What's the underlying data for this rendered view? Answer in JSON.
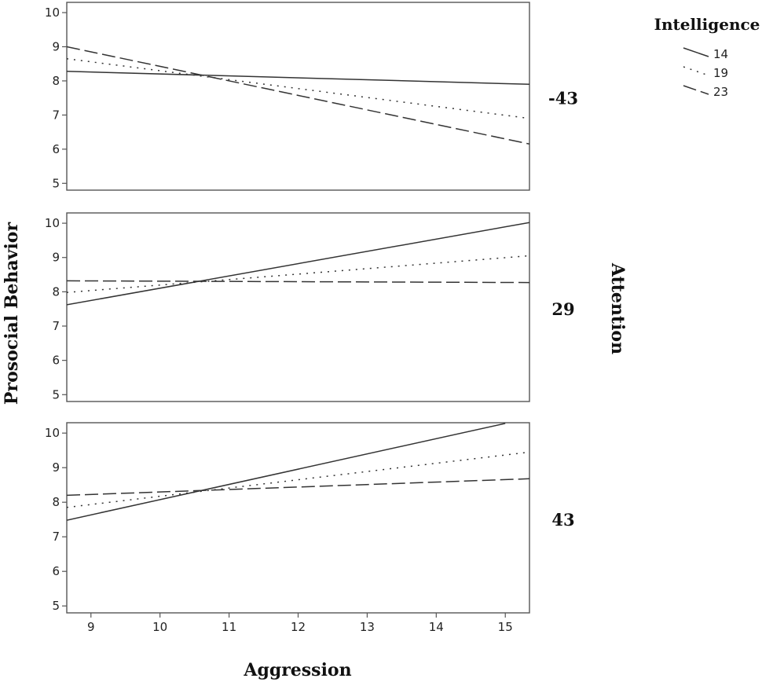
{
  "chart_data": {
    "type": "line",
    "xlabel": "Aggression",
    "ylabel": "Prosocial Behavior",
    "facet_label": "Attention",
    "legend": {
      "title": "Intelligence",
      "placement": "top-right",
      "entries": [
        "14",
        "19",
        "23"
      ]
    },
    "xlim": [
      8.65,
      15.35
    ],
    "ylim": [
      4.8,
      10.3
    ],
    "x_ticks": [
      9,
      10,
      11,
      12,
      13,
      14,
      15
    ],
    "y_ticks": [
      5,
      6,
      7,
      8,
      9,
      10
    ],
    "grid": false,
    "panels": [
      {
        "label": "-43",
        "series": [
          {
            "name": "14",
            "style": "solid",
            "x": [
              8.65,
              15.35
            ],
            "y": [
              8.28,
              7.9
            ]
          },
          {
            "name": "19",
            "style": "dotted",
            "x": [
              8.65,
              15.35
            ],
            "y": [
              8.65,
              6.9
            ]
          },
          {
            "name": "23",
            "style": "dashed",
            "x": [
              8.65,
              15.35
            ],
            "y": [
              9.0,
              6.15
            ]
          }
        ]
      },
      {
        "label": "29",
        "series": [
          {
            "name": "14",
            "style": "solid",
            "x": [
              8.65,
              15.35
            ],
            "y": [
              7.62,
              10.02
            ]
          },
          {
            "name": "19",
            "style": "dotted",
            "x": [
              8.65,
              15.35
            ],
            "y": [
              7.98,
              9.05
            ]
          },
          {
            "name": "23",
            "style": "dashed",
            "x": [
              8.65,
              15.35
            ],
            "y": [
              8.32,
              8.27
            ]
          }
        ]
      },
      {
        "label": "43",
        "series": [
          {
            "name": "14",
            "style": "solid",
            "x": [
              8.65,
              15.0
            ],
            "y": [
              7.48,
              10.28
            ]
          },
          {
            "name": "19",
            "style": "dotted",
            "x": [
              8.65,
              15.35
            ],
            "y": [
              7.85,
              9.45
            ]
          },
          {
            "name": "23",
            "style": "dashed",
            "x": [
              8.65,
              15.35
            ],
            "y": [
              8.2,
              8.68
            ]
          }
        ]
      }
    ]
  }
}
